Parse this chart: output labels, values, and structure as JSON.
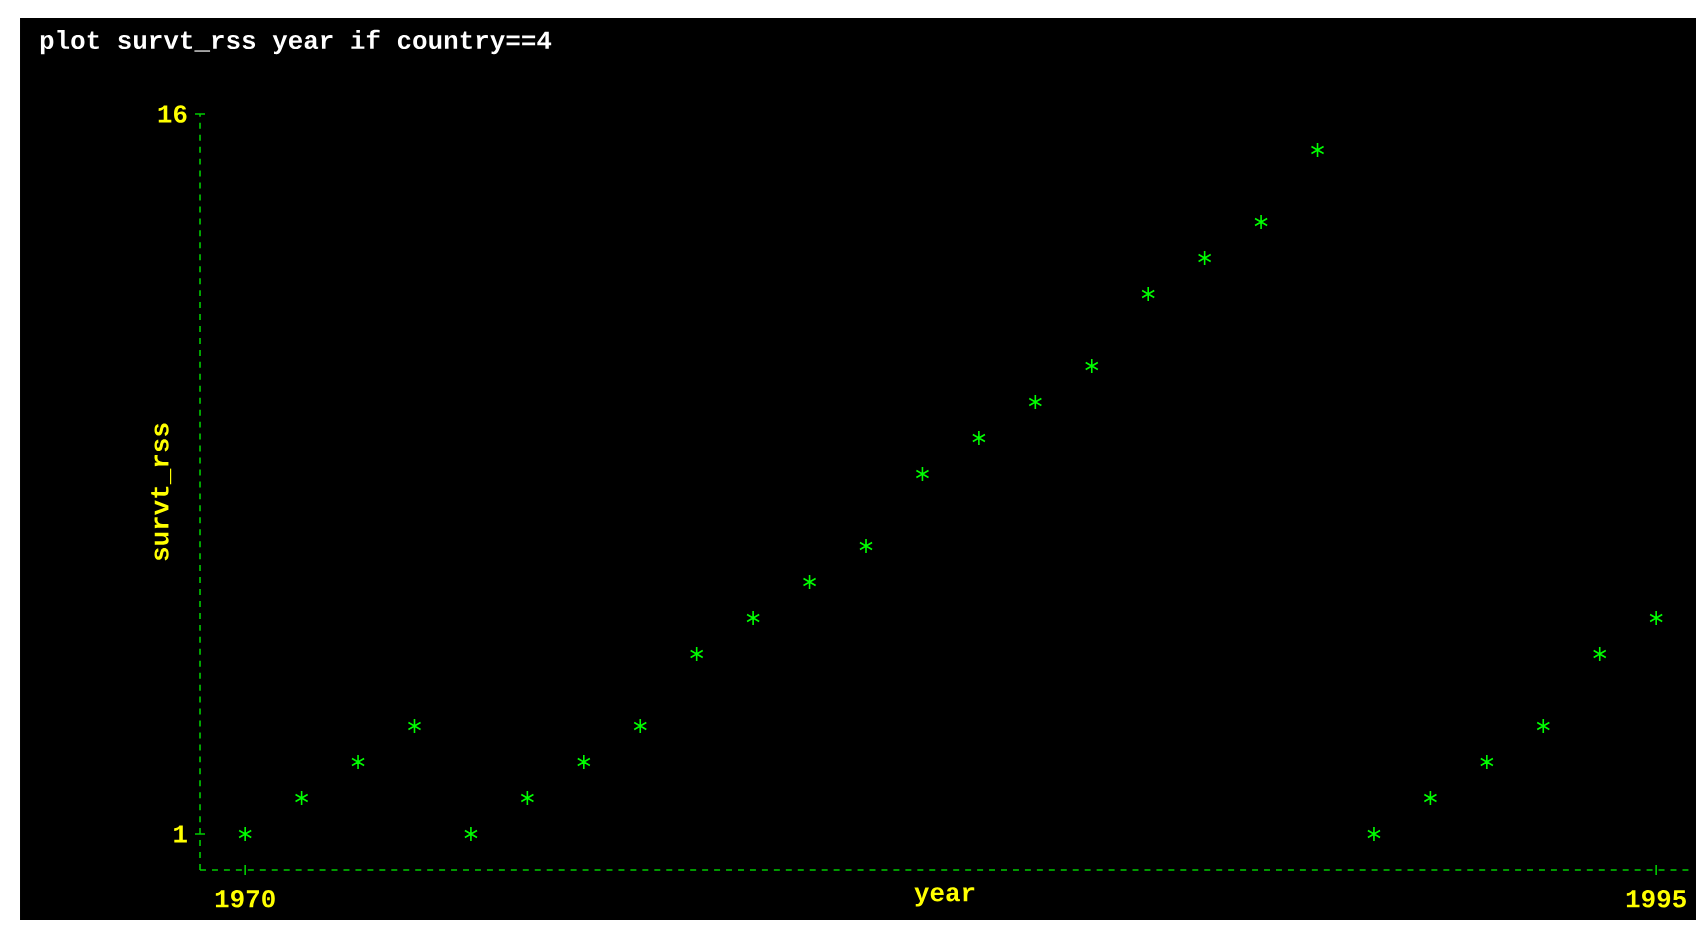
{
  "chart_data": {
    "type": "scatter",
    "title": "plot survt_rss year if country==4",
    "xlabel": "year",
    "ylabel": "survt_rss",
    "x": [
      1970,
      1971,
      1972,
      1973,
      1974,
      1975,
      1976,
      1977,
      1978,
      1979,
      1980,
      1981,
      1982,
      1983,
      1984,
      1985,
      1986,
      1987,
      1988,
      1989,
      1990,
      1991,
      1992,
      1993,
      1994,
      1995
    ],
    "values": [
      1,
      1.75,
      2.5,
      3.25,
      1,
      1.75,
      2.5,
      3.25,
      4.75,
      5.5,
      6.25,
      7,
      8.5,
      9.25,
      10,
      10.75,
      12.25,
      13,
      13.75,
      15.25,
      1,
      1.75,
      2.5,
      3.25,
      4.75,
      5.5
    ],
    "color": "#00ff00",
    "marker": "cross",
    "xlim": [
      1969.2,
      1995.6
    ],
    "ylim": [
      0.25,
      16
    ],
    "xticks": [
      1970,
      1995
    ],
    "yticks": [
      1,
      16
    ]
  }
}
